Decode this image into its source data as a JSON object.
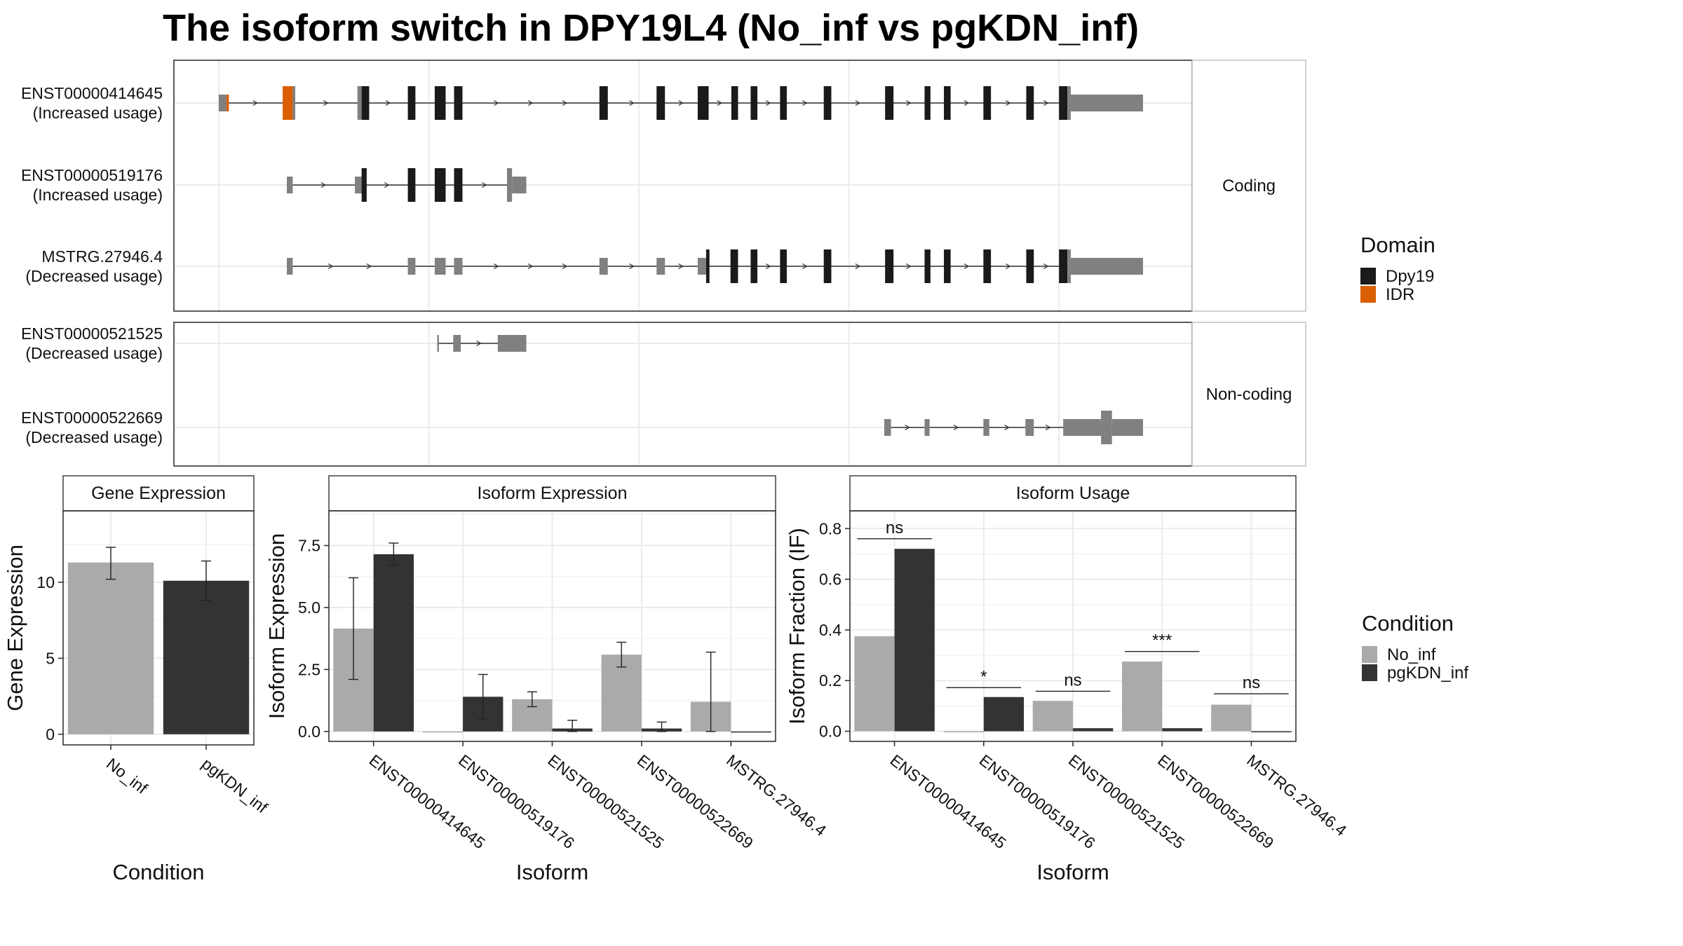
{
  "title": "The isoform switch in DPY19L4 (No_inf vs pgKDN_inf)",
  "colors": {
    "no_inf": "#aaaaaa",
    "pgkdn_inf": "#333333",
    "domain_dpy19": "#1a1a1a",
    "domain_idr": "#d95f02",
    "exon_noncoding": "#808080",
    "intron": "#333333"
  },
  "structure": {
    "panels": [
      {
        "label": "Coding",
        "isoforms": [
          {
            "id": "ENST00000414645",
            "note": "(Increased usage)",
            "exons": [
              [
                0.0,
                0.9,
                "small",
                "grey"
              ],
              [
                0.9,
                1.2,
                "small",
                "idr"
              ],
              [
                7.6,
                8.8,
                "full",
                "idr"
              ],
              [
                8.8,
                9.1,
                "full",
                "grey"
              ],
              [
                16.5,
                17.0,
                "full",
                "grey"
              ],
              [
                17.0,
                17.9,
                "full",
                "black"
              ],
              [
                22.5,
                23.4,
                "full",
                "black"
              ],
              [
                25.7,
                27.0,
                "full",
                "black"
              ],
              [
                28.0,
                29.0,
                "full",
                "black"
              ],
              [
                45.3,
                46.3,
                "full",
                "black"
              ],
              [
                52.1,
                53.1,
                "full",
                "black"
              ],
              [
                57.0,
                58.3,
                "full",
                "black"
              ],
              [
                61.0,
                61.8,
                "full",
                "black"
              ],
              [
                63.3,
                64.1,
                "full",
                "black"
              ],
              [
                66.8,
                67.6,
                "full",
                "black"
              ],
              [
                72.0,
                72.9,
                "full",
                "black"
              ],
              [
                79.3,
                80.3,
                "full",
                "black"
              ],
              [
                84.0,
                84.7,
                "full",
                "black"
              ],
              [
                86.3,
                87.1,
                "full",
                "black"
              ],
              [
                91.0,
                91.9,
                "full",
                "black"
              ],
              [
                96.1,
                97.0,
                "full",
                "black"
              ],
              [
                100.0,
                101.0,
                "full",
                "black"
              ],
              [
                101.0,
                101.4,
                "full",
                "grey"
              ],
              [
                101.4,
                110.0,
                "small",
                "grey"
              ]
            ]
          },
          {
            "id": "ENST00000519176",
            "note": "(Increased usage)",
            "exons": [
              [
                8.1,
                8.8,
                "small",
                "grey"
              ],
              [
                16.2,
                17.0,
                "small",
                "grey"
              ],
              [
                17.0,
                17.6,
                "full",
                "black"
              ],
              [
                22.5,
                23.4,
                "full",
                "black"
              ],
              [
                25.7,
                27.0,
                "full",
                "black"
              ],
              [
                28.0,
                29.0,
                "full",
                "black"
              ],
              [
                34.3,
                34.9,
                "full",
                "grey"
              ],
              [
                34.9,
                36.6,
                "small",
                "grey"
              ]
            ]
          },
          {
            "id": "MSTRG.27946.4",
            "note": "(Decreased usage)",
            "exons": [
              [
                8.1,
                8.8,
                "small",
                "grey"
              ],
              [
                22.5,
                23.4,
                "small",
                "grey"
              ],
              [
                25.7,
                27.0,
                "small",
                "grey"
              ],
              [
                28.0,
                29.0,
                "small",
                "grey"
              ],
              [
                45.3,
                46.3,
                "small",
                "grey"
              ],
              [
                52.1,
                53.1,
                "small",
                "grey"
              ],
              [
                57.0,
                58.0,
                "small",
                "grey"
              ],
              [
                58.0,
                58.4,
                "full",
                "black"
              ],
              [
                60.9,
                61.8,
                "full",
                "black"
              ],
              [
                63.3,
                64.1,
                "full",
                "black"
              ],
              [
                66.8,
                67.6,
                "full",
                "black"
              ],
              [
                72.0,
                72.9,
                "full",
                "black"
              ],
              [
                79.3,
                80.3,
                "full",
                "black"
              ],
              [
                84.0,
                84.7,
                "full",
                "black"
              ],
              [
                86.3,
                87.1,
                "full",
                "black"
              ],
              [
                91.0,
                91.9,
                "full",
                "black"
              ],
              [
                96.1,
                97.0,
                "full",
                "black"
              ],
              [
                100.0,
                101.0,
                "full",
                "black"
              ],
              [
                101.0,
                101.4,
                "full",
                "grey"
              ],
              [
                101.4,
                110.0,
                "small",
                "grey"
              ]
            ]
          }
        ]
      },
      {
        "label": "Non-coding",
        "isoforms": [
          {
            "id": "ENST00000521525",
            "note": "(Decreased usage)",
            "exons": [
              [
                26.0,
                26.2,
                "small",
                "grey"
              ],
              [
                27.9,
                28.8,
                "small",
                "grey"
              ],
              [
                33.2,
                36.6,
                "small",
                "grey"
              ]
            ]
          },
          {
            "id": "ENST00000522669",
            "note": "(Decreased usage)",
            "exons": [
              [
                79.2,
                80.0,
                "small",
                "grey"
              ],
              [
                84.0,
                84.6,
                "small",
                "grey"
              ],
              [
                91.0,
                91.7,
                "small",
                "grey"
              ],
              [
                96.0,
                97.0,
                "small",
                "grey"
              ],
              [
                100.5,
                105.0,
                "small",
                "grey"
              ],
              [
                105.0,
                106.3,
                "full",
                "grey"
              ],
              [
                106.3,
                110.0,
                "small",
                "grey"
              ]
            ]
          }
        ]
      }
    ]
  },
  "legends": {
    "domain": {
      "title": "Domain",
      "items": [
        "Dpy19",
        "IDR"
      ]
    },
    "condition": {
      "title": "Condition",
      "items": [
        "No_inf",
        "pgKDN_inf"
      ]
    }
  },
  "chart_data": [
    {
      "type": "bar",
      "panel_title": "Gene Expression",
      "xlabel": "Condition",
      "ylabel": "Gene Expression",
      "categories": [
        "No_inf",
        "pgKDN_inf"
      ],
      "values": [
        11.3,
        10.1
      ],
      "errors": [
        [
          10.2,
          12.3
        ],
        [
          8.8,
          11.4
        ]
      ],
      "yticks": [
        0,
        5,
        10
      ],
      "ylim": [
        -0.7,
        14.7
      ],
      "grid": true
    },
    {
      "type": "bar",
      "panel_title": "Isoform Expression",
      "xlabel": "Isoform",
      "ylabel": "Isoform Expression",
      "categories": [
        "ENST00000414645",
        "ENST00000519176",
        "ENST00000521525",
        "ENST00000522669",
        "MSTRG.27946.4"
      ],
      "series": [
        {
          "name": "No_inf",
          "values": [
            4.15,
            0.0,
            1.3,
            3.1,
            1.2
          ],
          "errors": [
            [
              2.1,
              6.2
            ],
            null,
            [
              1.0,
              1.6
            ],
            [
              2.6,
              3.6
            ],
            [
              0.0,
              3.2
            ]
          ]
        },
        {
          "name": "pgKDN_inf",
          "values": [
            7.15,
            1.4,
            0.12,
            0.12,
            0.0
          ],
          "errors": [
            [
              6.7,
              7.6
            ],
            [
              0.5,
              2.3
            ],
            [
              0.0,
              0.45
            ],
            [
              0.0,
              0.38
            ],
            null
          ]
        }
      ],
      "yticks": [
        0.0,
        2.5,
        5.0,
        7.5
      ],
      "ytick_labels": [
        "0.0",
        "2.5",
        "5.0",
        "7.5"
      ],
      "ylim": [
        -0.4,
        8.9
      ],
      "grid": true
    },
    {
      "type": "bar",
      "panel_title": "Isoform Usage",
      "xlabel": "Isoform",
      "ylabel": "Isoform Fraction (IF)",
      "categories": [
        "ENST00000414645",
        "ENST00000519176",
        "ENST00000521525",
        "ENST00000522669",
        "MSTRG.27946.4"
      ],
      "series": [
        {
          "name": "No_inf",
          "values": [
            0.375,
            0.0,
            0.12,
            0.275,
            0.105
          ]
        },
        {
          "name": "pgKDN_inf",
          "values": [
            0.72,
            0.135,
            0.012,
            0.012,
            0.0
          ]
        }
      ],
      "annotations": [
        {
          "category": "ENST00000414645",
          "text": "ns",
          "y": 0.76
        },
        {
          "category": "ENST00000519176",
          "text": "*",
          "y": 0.172
        },
        {
          "category": "ENST00000521525",
          "text": "ns",
          "y": 0.158
        },
        {
          "category": "ENST00000522669",
          "text": "***",
          "y": 0.315
        },
        {
          "category": "MSTRG.27946.4",
          "text": "ns",
          "y": 0.148
        }
      ],
      "yticks": [
        0.0,
        0.2,
        0.4,
        0.6,
        0.8
      ],
      "ytick_labels": [
        "0.0",
        "0.2",
        "0.4",
        "0.6",
        "0.8"
      ],
      "ylim": [
        -0.04,
        0.87
      ],
      "grid": true
    }
  ]
}
